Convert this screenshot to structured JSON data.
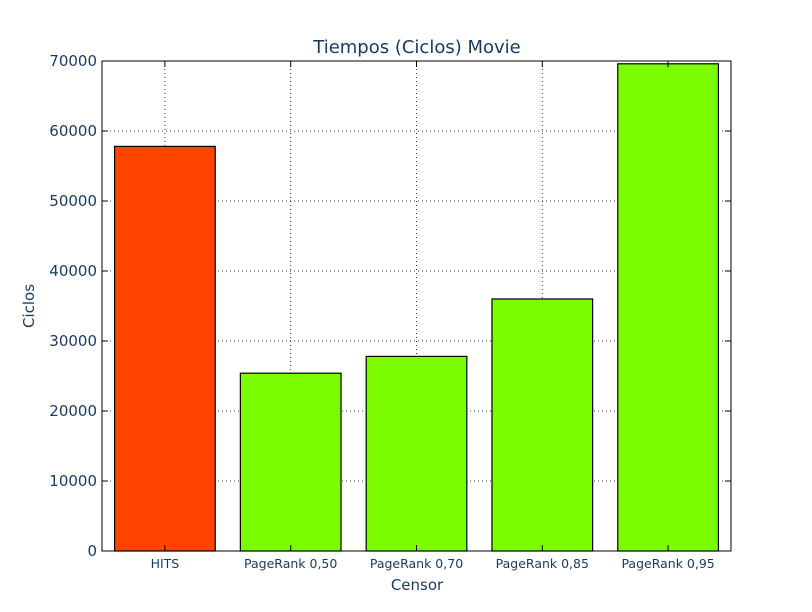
{
  "chart_data": {
    "type": "bar",
    "title": "Tiempos (Ciclos) Movie",
    "xlabel": "Censor",
    "ylabel": "Ciclos",
    "categories": [
      "HITS",
      "PageRank 0,50",
      "PageRank 0,70",
      "PageRank 0,85",
      "PageRank 0,95"
    ],
    "values": [
      57800,
      25400,
      27800,
      36000,
      69600
    ],
    "bar_colors": [
      "#ff4500",
      "#7cfc00",
      "#7cfc00",
      "#7cfc00",
      "#7cfc00"
    ],
    "ylim": [
      0,
      70000
    ],
    "yticks": [
      0,
      10000,
      20000,
      30000,
      40000,
      50000,
      60000,
      70000
    ],
    "grid": true,
    "text_color": "#1a3a5c"
  }
}
